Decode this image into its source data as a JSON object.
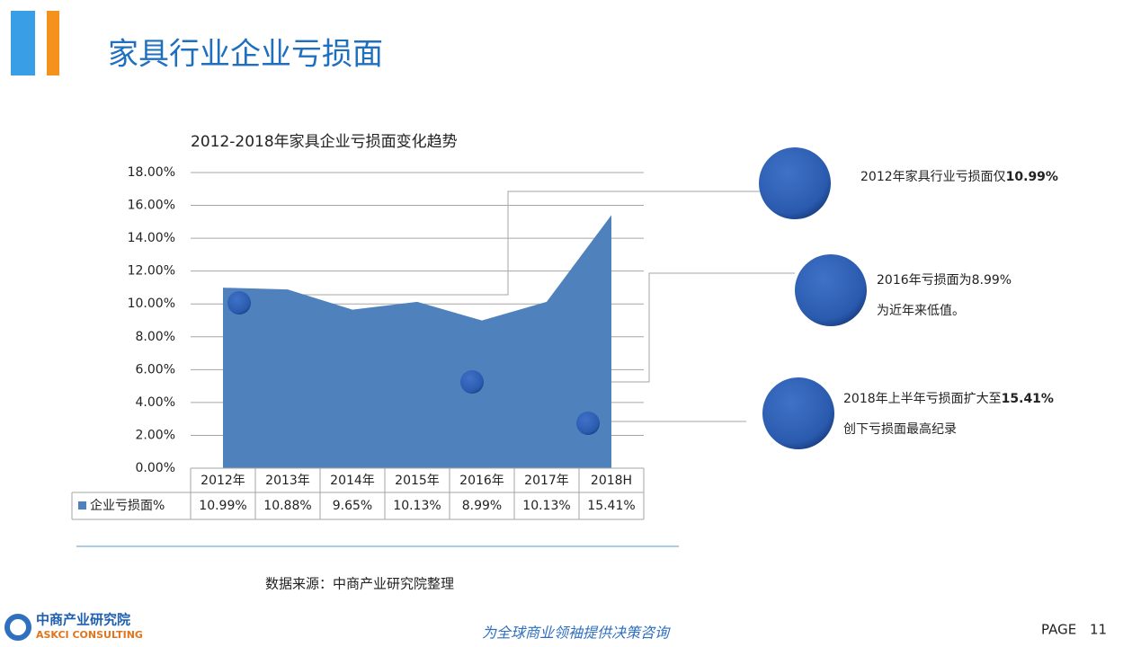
{
  "page": {
    "title": "家具行业企业亏损面",
    "source": "数据来源：中商产业研究院整理",
    "slogan": "为全球商业领袖提供决策咨询",
    "page_label": "PAGE",
    "page_number": "11",
    "logo_cn": "中商产业研究院",
    "logo_en": "ASKCI CONSULTING"
  },
  "chart_data": {
    "type": "area",
    "title": "2012-2018年家具企业亏损面变化趋势",
    "categories": [
      "2012年",
      "2013年",
      "2014年",
      "2015年",
      "2016年",
      "2017年",
      "2018H"
    ],
    "series": [
      {
        "name": "企业亏损面%",
        "color": "#4f81bd",
        "values": [
          10.99,
          10.88,
          9.65,
          10.13,
          8.99,
          10.13,
          15.41
        ],
        "value_labels": [
          "10.99%",
          "10.88%",
          "9.65%",
          "10.13%",
          "8.99%",
          "10.13%",
          "15.41%"
        ]
      }
    ],
    "ylim": [
      0,
      18
    ],
    "yticks": [
      {
        "value": 0,
        "label": "0.00%"
      },
      {
        "value": 2,
        "label": "2.00%"
      },
      {
        "value": 4,
        "label": "4.00%"
      },
      {
        "value": 6,
        "label": "6.00%"
      },
      {
        "value": 8,
        "label": "8.00%"
      },
      {
        "value": 10,
        "label": "10.00%"
      },
      {
        "value": 12,
        "label": "12.00%"
      },
      {
        "value": 14,
        "label": "14.00%"
      },
      {
        "value": 16,
        "label": "16.00%"
      },
      {
        "value": 18,
        "label": "18.00%"
      }
    ],
    "grid": true
  },
  "annotations": [
    {
      "lines": [
        "2012年家具行业亏损面仅"
      ],
      "highlight": "10.99%"
    },
    {
      "lines": [
        "2016年亏损面为8.99%",
        "为近年来低值。"
      ]
    },
    {
      "lines": [
        "2018年上半年亏损面扩大至",
        "创下亏损面最高纪录"
      ],
      "highlight": "15.41%"
    }
  ]
}
